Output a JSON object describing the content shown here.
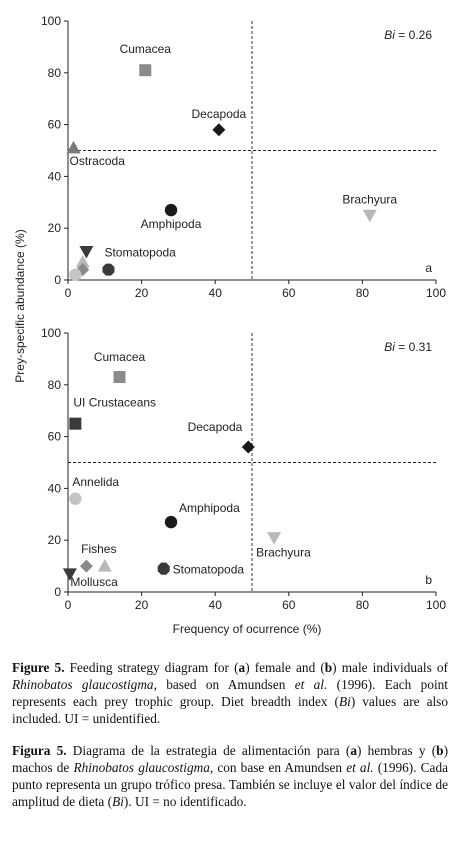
{
  "chart_data": [
    {
      "type": "scatter",
      "panel_letter": "a",
      "index_label": "Bi = 0.26",
      "xlim": [
        0,
        100
      ],
      "ylim": [
        0,
        100
      ],
      "xticks": [
        0,
        20,
        40,
        60,
        80,
        100
      ],
      "yticks": [
        0,
        20,
        40,
        60,
        80,
        100
      ],
      "reference_lines": {
        "x": 50,
        "y": 50
      },
      "points": [
        {
          "label": "Cumacea",
          "x": 21,
          "y": 81,
          "marker": "square",
          "color": "#8a8a8a"
        },
        {
          "label": "Decapoda",
          "x": 41,
          "y": 58,
          "marker": "diamond",
          "color": "#1a1a1a"
        },
        {
          "label": "Ostracoda",
          "x": 1.5,
          "y": 51,
          "marker": "triangle-up",
          "color": "#7a7a7a"
        },
        {
          "label": "Amphipoda",
          "x": 28,
          "y": 27,
          "marker": "circle",
          "color": "#1a1a1a"
        },
        {
          "label": "Brachyura",
          "x": 82,
          "y": 25,
          "marker": "triangle-down",
          "color": "#b8b8b8"
        },
        {
          "label": "Stomatopoda",
          "x": 11,
          "y": 4,
          "marker": "octagon",
          "color": "#3a3a3a"
        },
        {
          "label": "",
          "x": 5,
          "y": 11,
          "marker": "triangle-down",
          "color": "#3a3a3a"
        },
        {
          "label": "",
          "x": 4,
          "y": 7,
          "marker": "triangle-up",
          "color": "#b8b8b8"
        },
        {
          "label": "",
          "x": 4,
          "y": 4,
          "marker": "diamond",
          "color": "#8a8a8a"
        },
        {
          "label": "",
          "x": 2,
          "y": 2,
          "marker": "circle",
          "color": "#c4c4c4"
        }
      ]
    },
    {
      "type": "scatter",
      "panel_letter": "b",
      "index_label": "Bi = 0.31",
      "xlim": [
        0,
        100
      ],
      "ylim": [
        0,
        100
      ],
      "xticks": [
        0,
        20,
        40,
        60,
        80,
        100
      ],
      "yticks": [
        0,
        20,
        40,
        60,
        80,
        100
      ],
      "reference_lines": {
        "x": 50,
        "y": 50
      },
      "points": [
        {
          "label": "Cumacea",
          "x": 14,
          "y": 83,
          "marker": "square",
          "color": "#8a8a8a"
        },
        {
          "label": "UI Crustaceans",
          "x": 2,
          "y": 65,
          "marker": "square",
          "color": "#3a3a3a"
        },
        {
          "label": "Decapoda",
          "x": 49,
          "y": 56,
          "marker": "diamond",
          "color": "#1a1a1a"
        },
        {
          "label": "Annelida",
          "x": 2,
          "y": 36,
          "marker": "circle",
          "color": "#c4c4c4"
        },
        {
          "label": "Amphipoda",
          "x": 28,
          "y": 27,
          "marker": "circle",
          "color": "#1a1a1a"
        },
        {
          "label": "Brachyura",
          "x": 56,
          "y": 21,
          "marker": "triangle-down",
          "color": "#b8b8b8"
        },
        {
          "label": "Fishes",
          "x": 10,
          "y": 10,
          "marker": "triangle-up",
          "color": "#b8b8b8"
        },
        {
          "label": "Mollusca",
          "x": 5,
          "y": 10,
          "marker": "diamond",
          "color": "#8a8a8a"
        },
        {
          "label": "Stomatopoda",
          "x": 26,
          "y": 9,
          "marker": "octagon",
          "color": "#3a3a3a"
        },
        {
          "label": "",
          "x": 0.5,
          "y": 7,
          "marker": "triangle-down",
          "color": "#3a3a3a"
        }
      ]
    }
  ],
  "axes": {
    "ylabel": "Prey-specific abundance (%)",
    "xlabel": "Frequency of ocurrence (%)"
  },
  "caption_en": {
    "figure_label": "Figure 5.",
    "part1": " Feeding strategy diagram for (",
    "a": "a",
    "part2": ") female and (",
    "b": "b",
    "part3": ") male individuals of ",
    "species": "Rhinobatos glaucostigma",
    "part4": ", based on Amundsen ",
    "etal": "et al.",
    "part5": " (1996). Each point represents each prey trophic group. Diet breadth index (",
    "bi": "Bi",
    "part6": ") values are also included. UI = unidentified."
  },
  "caption_es": {
    "figure_label": "Figura 5.",
    "part1": " Diagrama de la estrategia de alimentación para (",
    "a": "a",
    "part2": ") hembras y (",
    "b": "b",
    "part3": ") machos de ",
    "species": "Rhinobatos glaucostigma",
    "part4": ", con base en Amundsen ",
    "etal": "et al.",
    "part5": " (1996). Cada punto representa un grupo trófico presa. También se incluye el valor del índice de amplitud de dieta (",
    "bi": "Bi",
    "part6": "). UI = no identificado."
  }
}
